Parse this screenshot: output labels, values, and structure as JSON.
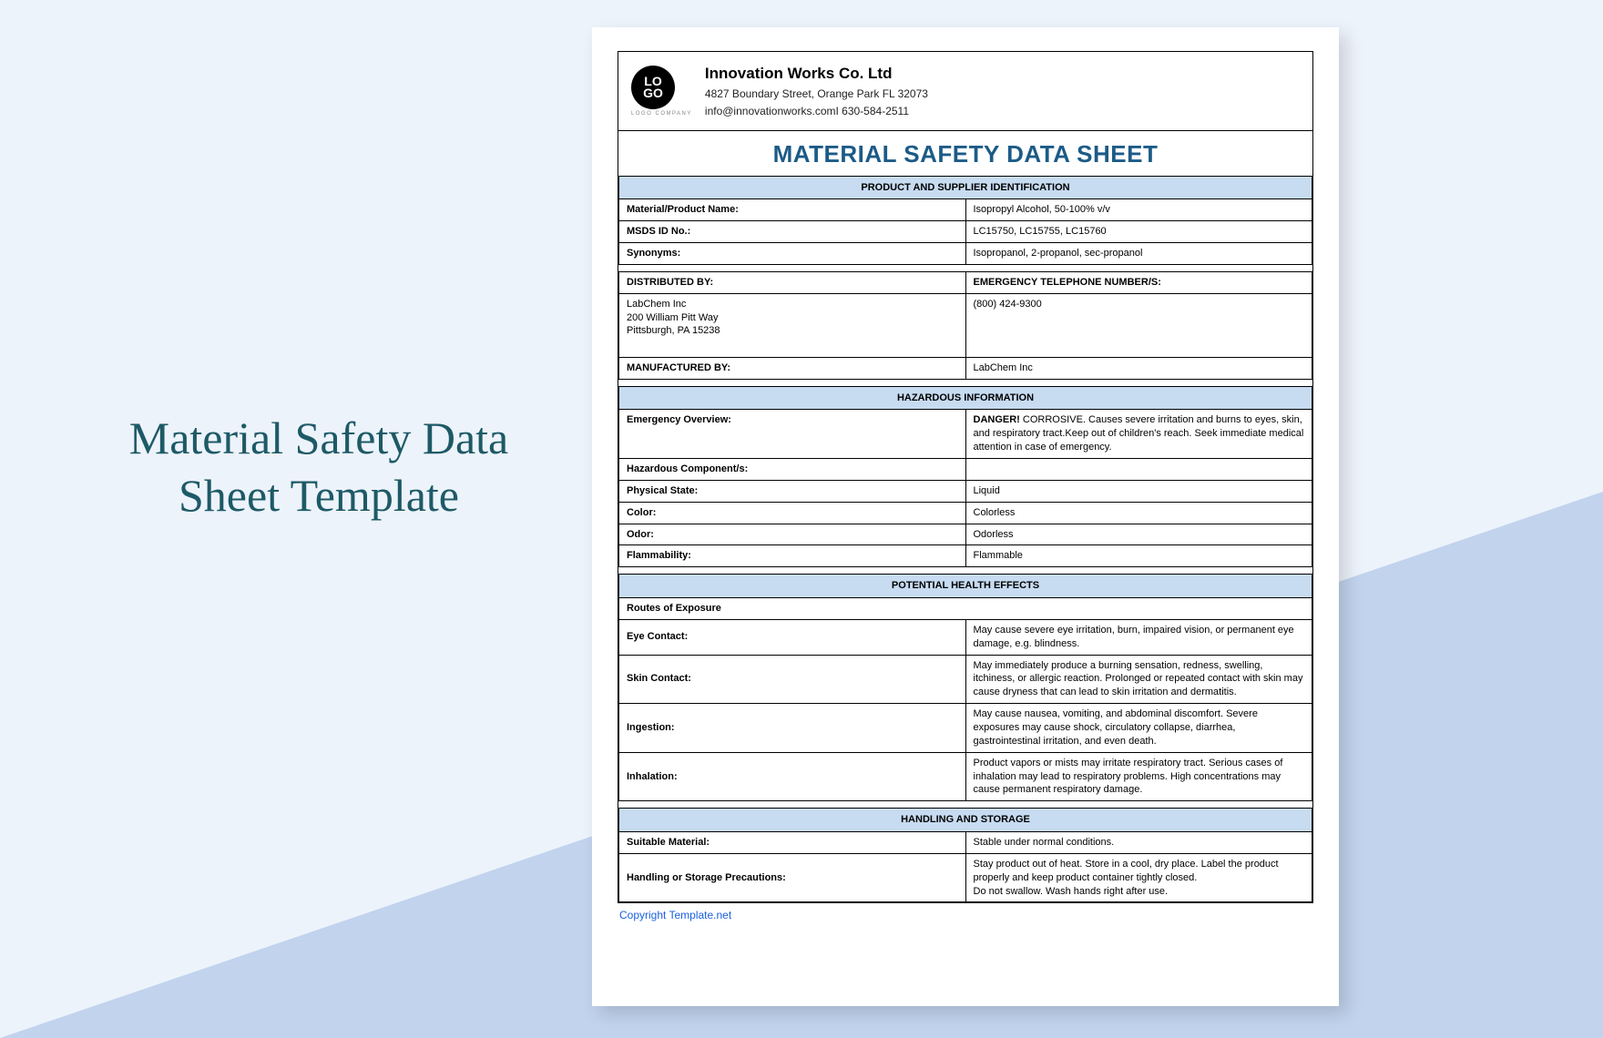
{
  "pageTitle": "Material Safety Data Sheet Template",
  "logo": {
    "top": "LO",
    "bottom": "GO",
    "sub": "LOGO COMPANY"
  },
  "company": {
    "name": "Innovation Works Co. Ltd",
    "address": "4827 Boundary Street, Orange Park FL 32073",
    "contact": "info@innovationworks.comI 630-584-2511"
  },
  "docTitle": "MATERIAL SAFETY DATA SHEET",
  "sections": {
    "product": {
      "header": "PRODUCT AND SUPPLIER IDENTIFICATION",
      "rows": [
        {
          "label": "Material/Product Name:",
          "value": "Isopropyl Alcohol, 50-100% v/v"
        },
        {
          "label": "MSDS ID No.:",
          "value": "LC15750, LC15755, LC15760"
        },
        {
          "label": "Synonyms:",
          "value": "Isopropanol, 2-propanol, sec-propanol"
        }
      ],
      "distLabel": "DISTRIBUTED BY:",
      "emergLabel": "EMERGENCY TELEPHONE NUMBER/S:",
      "distValue": "LabChem Inc\n200 William Pitt Way\nPittsburgh, PA 15238",
      "emergValue": "(800) 424-9300",
      "mfgLabel": "MANUFACTURED BY:",
      "mfgValue": "LabChem Inc"
    },
    "hazard": {
      "header": "HAZARDOUS INFORMATION",
      "overviewLabel": "Emergency Overview:",
      "dangerWord": "DANGER!",
      "overviewValue": " CORROSIVE. Causes severe irritation and burns to eyes, skin, and respiratory tract.Keep out of children's reach. Seek immediate medical attention in case of emergency.",
      "rows": [
        {
          "label": "Hazardous Component/s:",
          "value": ""
        },
        {
          "label": "Physical State:",
          "value": "Liquid"
        },
        {
          "label": "Color:",
          "value": "Colorless"
        },
        {
          "label": "Odor:",
          "value": "Odorless"
        },
        {
          "label": "Flammability:",
          "value": "Flammable"
        }
      ]
    },
    "health": {
      "header": "POTENTIAL HEALTH EFFECTS",
      "routesLabel": "Routes of Exposure",
      "rows": [
        {
          "label": "Eye Contact:",
          "value": "May cause severe eye irritation, burn, impaired vision, or permanent eye damage, e.g. blindness."
        },
        {
          "label": "Skin Contact:",
          "value": "May immediately produce a burning sensation, redness, swelling, itchiness, or allergic reaction. Prolonged or repeated contact with skin may cause dryness that can lead to skin irritation and dermatitis."
        },
        {
          "label": "Ingestion:",
          "value": "May cause nausea, vomiting, and abdominal discomfort. Severe exposures may cause shock, circulatory collapse, diarrhea, gastrointestinal irritation, and even death."
        },
        {
          "label": "Inhalation:",
          "value": "Product vapors or mists may irritate respiratory tract. Serious cases of inhalation may lead to respiratory problems. High concentrations may cause permanent respiratory damage."
        }
      ]
    },
    "storage": {
      "header": "HANDLING AND STORAGE",
      "rows": [
        {
          "label": "Suitable Material:",
          "value": "Stable under normal conditions."
        },
        {
          "label": "Handling or Storage Precautions:",
          "value": "Stay product out of heat. Store in a cool, dry place. Label the product properly and keep product container tightly closed.\nDo not swallow. Wash hands right after use."
        }
      ]
    }
  },
  "copyright": "Copyright Template.net",
  "colors": {
    "background": "#edf3fb",
    "diagonal": "#c1d3ed",
    "titleText": "#1d5a66",
    "docTitle": "#1c5b87",
    "sectionHeader": "#c7dbf1",
    "linkBlue": "#1a5fe0"
  }
}
